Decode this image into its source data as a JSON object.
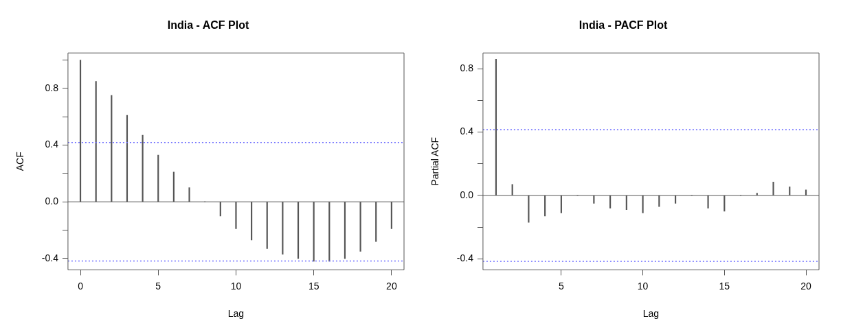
{
  "chart_data": [
    {
      "type": "bar",
      "title": "India - ACF Plot",
      "xlabel": "Lag",
      "ylabel": "ACF",
      "x": [
        0,
        1,
        2,
        3,
        4,
        5,
        6,
        7,
        8,
        9,
        10,
        11,
        12,
        13,
        14,
        15,
        16,
        17,
        18,
        19,
        20
      ],
      "values": [
        1.0,
        0.85,
        0.75,
        0.61,
        0.47,
        0.33,
        0.21,
        0.1,
        0.0,
        -0.1,
        -0.19,
        -0.27,
        -0.33,
        -0.37,
        -0.4,
        -0.42,
        -0.42,
        -0.4,
        -0.35,
        -0.28,
        -0.19
      ],
      "color": "#555555",
      "xlim": [
        -0.8,
        20.8
      ],
      "xticks": [
        0,
        5,
        10,
        15,
        20
      ],
      "ylim": [
        -0.48,
        1.05
      ],
      "yticks": [
        -0.4,
        {
          "value": -0.2,
          "label": null
        },
        {
          "value": 0,
          "label": "0.0"
        },
        {
          "value": 0.2,
          "label": null
        },
        0.4,
        {
          "value": 0.6,
          "label": null
        },
        0.8,
        {
          "value": 1.0,
          "label": null
        }
      ],
      "ref_lines": [
        {
          "axis": "y",
          "value": 0.418,
          "color": "#6b6bff",
          "line_style": "dotted"
        },
        {
          "axis": "y",
          "value": -0.418,
          "color": "#6b6bff",
          "line_style": "dotted"
        },
        {
          "axis": "y",
          "value": 0,
          "color": "#555555",
          "line_style": "solid"
        }
      ],
      "grid": false,
      "legend": false
    },
    {
      "type": "bar",
      "title": "India - PACF Plot",
      "xlabel": "Lag",
      "ylabel": "Partial ACF",
      "x": [
        1,
        2,
        3,
        4,
        5,
        6,
        7,
        8,
        9,
        10,
        11,
        12,
        13,
        14,
        15,
        16,
        17,
        18,
        19,
        20
      ],
      "values": [
        0.86,
        0.07,
        -0.17,
        -0.13,
        -0.11,
        0.0,
        -0.05,
        -0.08,
        -0.09,
        -0.11,
        -0.07,
        -0.05,
        0.0,
        -0.08,
        -0.1,
        0.0,
        0.015,
        0.085,
        0.055,
        0.035
      ],
      "color": "#555555",
      "xlim": [
        0.2,
        20.8
      ],
      "xticks": [
        5,
        10,
        15,
        20
      ],
      "ylim": [
        -0.47,
        0.9
      ],
      "yticks": [
        -0.4,
        {
          "value": -0.2,
          "label": null
        },
        {
          "value": 0,
          "label": "0.0"
        },
        {
          "value": 0.2,
          "label": null
        },
        0.4,
        {
          "value": 0.6,
          "label": null
        },
        0.8
      ],
      "ref_lines": [
        {
          "axis": "y",
          "value": 0.416,
          "color": "#6b6bff",
          "line_style": "dotted"
        },
        {
          "axis": "y",
          "value": -0.416,
          "color": "#6b6bff",
          "line_style": "dotted"
        },
        {
          "axis": "y",
          "value": 0,
          "color": "#555555",
          "line_style": "solid"
        }
      ],
      "grid": false,
      "legend": false
    }
  ]
}
